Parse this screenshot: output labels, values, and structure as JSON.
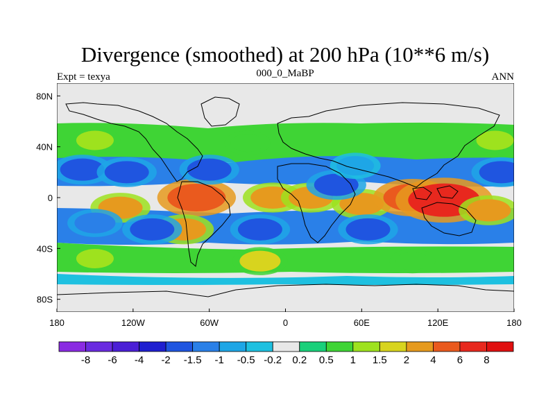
{
  "title": "Divergence (smoothed) at 200 hPa (10**6 m/s)",
  "left_string": "Expt = texya",
  "center_string": "000_0_MaBP",
  "right_string": "ANN",
  "chart_data": {
    "type": "heatmap",
    "projection": "cylindrical-equidistant",
    "xlim": [
      -180,
      180
    ],
    "ylim": [
      -90,
      90
    ],
    "x_ticks": [
      {
        "value": -180,
        "label": "180"
      },
      {
        "value": -120,
        "label": "120W"
      },
      {
        "value": -60,
        "label": "60W"
      },
      {
        "value": 0,
        "label": "0"
      },
      {
        "value": 60,
        "label": "60E"
      },
      {
        "value": 120,
        "label": "120E"
      },
      {
        "value": 180,
        "label": "180"
      }
    ],
    "y_ticks": [
      {
        "value": 80,
        "label": "80N"
      },
      {
        "value": 40,
        "label": "40N"
      },
      {
        "value": 0,
        "label": "0"
      },
      {
        "value": -40,
        "label": "40S"
      },
      {
        "value": -80,
        "label": "80S"
      }
    ],
    "levels": [
      -8,
      -6,
      -4,
      -2,
      -1.5,
      -1,
      -0.5,
      -0.2,
      0.2,
      0.5,
      1,
      1.5,
      2,
      4,
      6,
      8
    ],
    "level_labels": [
      "-8",
      "-6",
      "-4",
      "-2",
      "-1.5",
      "-1",
      "-0.5",
      "-0.2",
      "0.2",
      "0.5",
      "1",
      "1.5",
      "2",
      "4",
      "6",
      "8"
    ],
    "colors": [
      "#8a2be2",
      "#6a2be0",
      "#4b1fd6",
      "#1f1fd0",
      "#1f55e0",
      "#2a80e8",
      "#1ea6e6",
      "#1ec0e0",
      "#e8e8e8",
      "#19d07a",
      "#3fd435",
      "#9ee21e",
      "#d8d41e",
      "#e69a1e",
      "#ea5a1e",
      "#e8281e",
      "#e01010"
    ],
    "features": [
      {
        "lon": -70,
        "lat": 0,
        "value": 4
      },
      {
        "lon": -130,
        "lat": -8,
        "value": 2
      },
      {
        "lon": -10,
        "lat": 0,
        "value": 2
      },
      {
        "lon": 20,
        "lat": 0,
        "value": 2
      },
      {
        "lon": 60,
        "lat": -5,
        "value": 2
      },
      {
        "lon": 100,
        "lat": 0,
        "value": 4
      },
      {
        "lon": 125,
        "lat": -2,
        "value": 6
      },
      {
        "lon": 160,
        "lat": -10,
        "value": 2
      },
      {
        "lon": -80,
        "lat": -25,
        "value": 2
      },
      {
        "lon": -160,
        "lat": 22,
        "value": -2
      },
      {
        "lon": -125,
        "lat": 20,
        "value": -2
      },
      {
        "lon": -60,
        "lat": 22,
        "value": -2
      },
      {
        "lon": 170,
        "lat": 20,
        "value": -2
      },
      {
        "lon": -105,
        "lat": -25,
        "value": -2
      },
      {
        "lon": -20,
        "lat": -25,
        "value": -2
      },
      {
        "lon": 65,
        "lat": -25,
        "value": -2
      },
      {
        "lon": -150,
        "lat": -20,
        "value": -1.5
      },
      {
        "lon": 40,
        "lat": 10,
        "value": -2
      },
      {
        "lon": 55,
        "lat": 25,
        "value": -1
      },
      {
        "lon": -150,
        "lat": 45,
        "value": 1
      },
      {
        "lon": 165,
        "lat": 45,
        "value": 1
      },
      {
        "lon": -30,
        "lat": 43,
        "value": 0.5
      },
      {
        "lon": -150,
        "lat": -48,
        "value": 1
      },
      {
        "lon": 100,
        "lat": -50,
        "value": 0.5
      },
      {
        "lon": -20,
        "lat": -50,
        "value": 1.5
      }
    ]
  }
}
